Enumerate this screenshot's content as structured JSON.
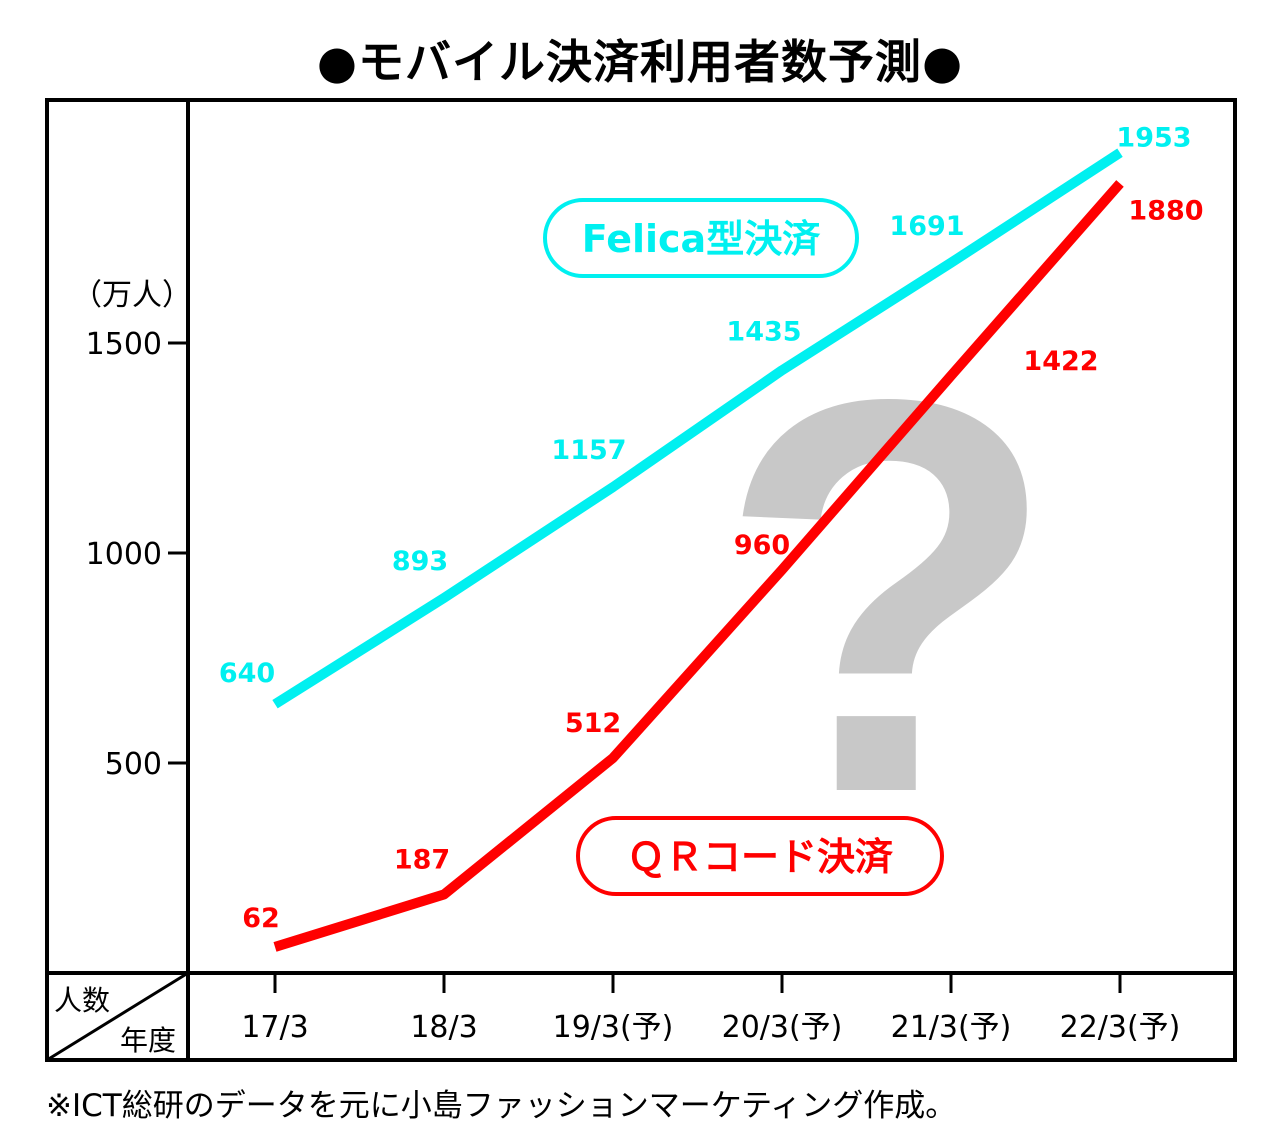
{
  "colors": {
    "felica": "#00f0f0",
    "qr": "#ff0000",
    "question_mark": "#c8c8c8",
    "frame": "#000000"
  },
  "header": {
    "title": "●モバイル決済利用者数予測●"
  },
  "corner": {
    "top_label": "人数",
    "bottom_label": "年度"
  },
  "decoration": {
    "question_mark_glyph": "?"
  },
  "footer": {
    "note": "※ICT総研のデータを元に小島ファッションマーケティング作成。"
  },
  "chart_data": {
    "type": "line",
    "title": "●モバイル決済利用者数予測●",
    "ylabel": "（万人）",
    "xlabel": "",
    "categories": [
      "17/3",
      "18/3",
      "19/3(予)",
      "20/3(予)",
      "21/3(予)",
      "22/3(予)"
    ],
    "yticks": [
      "500",
      "1000",
      "1500"
    ],
    "ylim": [
      0,
      2000
    ],
    "grid": false,
    "series": [
      {
        "name": "Felica型決済",
        "color": "#00f0f0",
        "values": [
          640,
          893,
          1157,
          1435,
          1691,
          1953
        ],
        "labels": [
          "640",
          "893",
          "1157",
          "1435",
          "1691",
          "1953"
        ]
      },
      {
        "name": "ＱＲコード決済",
        "color": "#ff0000",
        "values": [
          62,
          187,
          512,
          960,
          1422,
          1880
        ],
        "labels": [
          "62",
          "187",
          "512",
          "960",
          "1422",
          "1880"
        ]
      }
    ]
  }
}
